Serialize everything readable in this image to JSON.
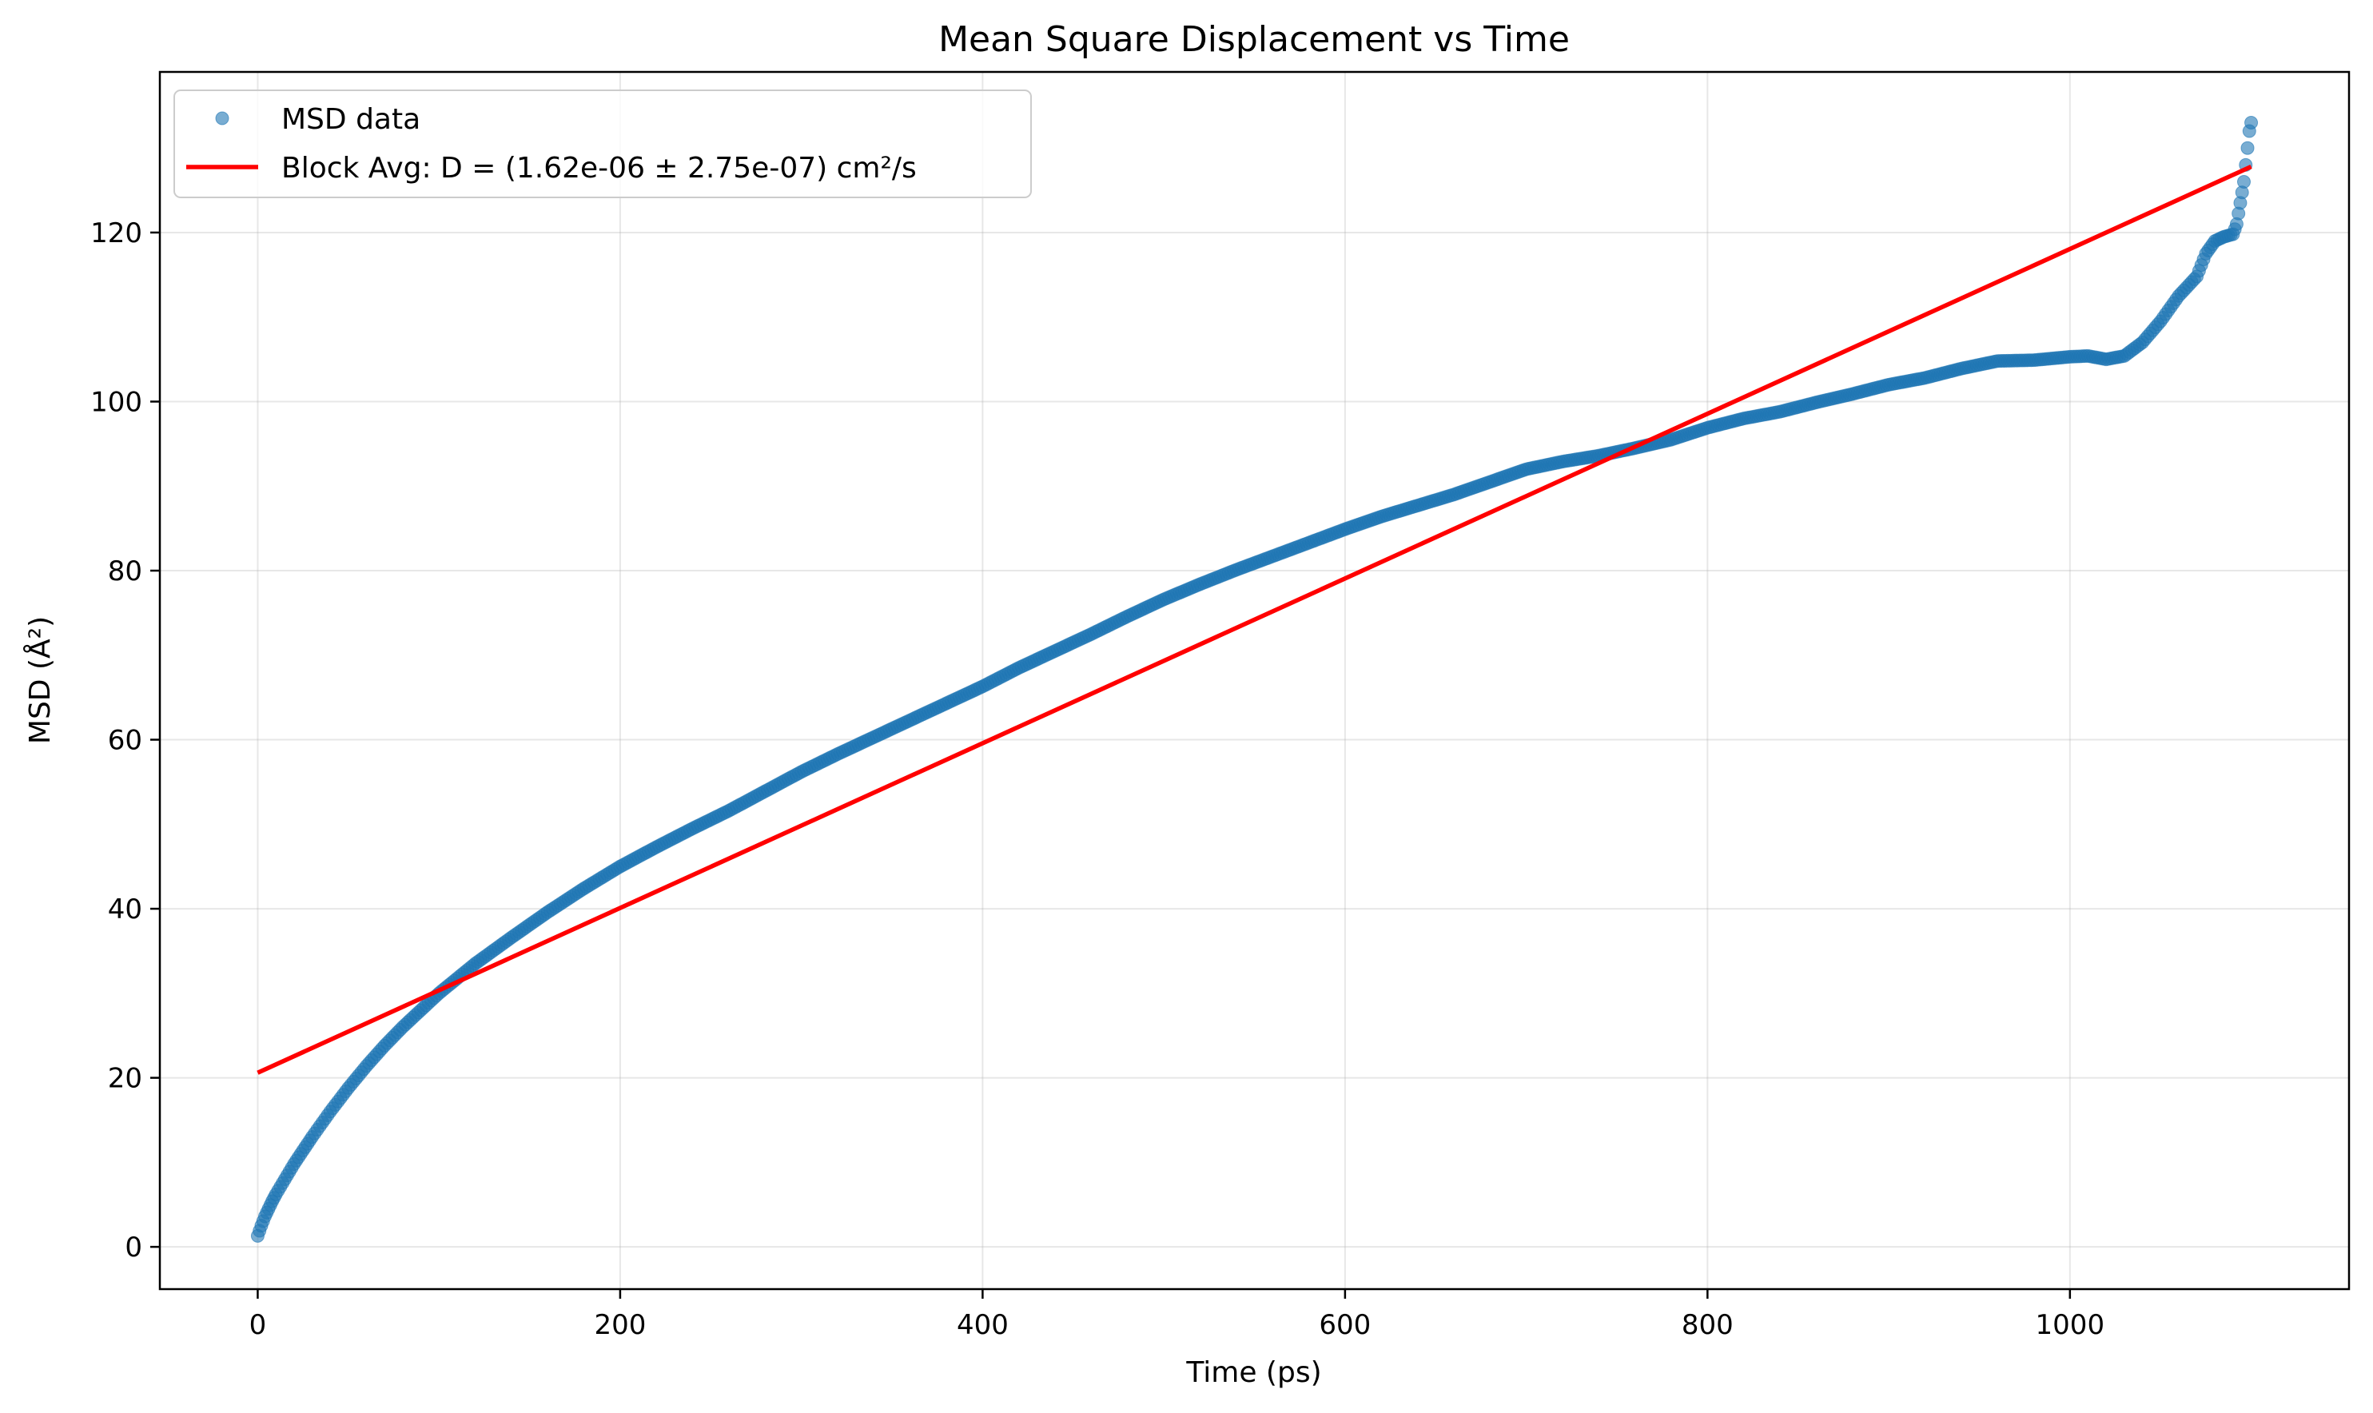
{
  "chart_data": {
    "type": "scatter",
    "title": "Mean Square Displacement vs Time",
    "xlabel": "Time (ps)",
    "ylabel": "MSD (Å²)",
    "xlim": [
      -54,
      1154
    ],
    "ylim": [
      -5,
      139
    ],
    "x_ticks": [
      0,
      200,
      400,
      600,
      800,
      1000
    ],
    "y_ticks": [
      0,
      20,
      40,
      60,
      80,
      100,
      120
    ],
    "grid": true,
    "legend_position": "top-left",
    "series": [
      {
        "name": "MSD data",
        "kind": "scatter",
        "color": "#1f77b4",
        "x": [
          0,
          2,
          4,
          6,
          8,
          10,
          15,
          20,
          25,
          30,
          40,
          50,
          60,
          70,
          80,
          90,
          100,
          120,
          140,
          160,
          180,
          200,
          220,
          240,
          260,
          280,
          300,
          320,
          340,
          360,
          380,
          400,
          420,
          440,
          460,
          480,
          500,
          520,
          540,
          560,
          580,
          600,
          620,
          640,
          660,
          680,
          700,
          720,
          740,
          760,
          780,
          800,
          820,
          840,
          860,
          880,
          900,
          920,
          940,
          960,
          980,
          1000,
          1010,
          1020,
          1030,
          1040,
          1050,
          1060,
          1070,
          1075,
          1080,
          1085,
          1090,
          1092,
          1094,
          1096,
          1097,
          1098,
          1099,
          1100
        ],
        "y": [
          1.3,
          2.5,
          3.6,
          4.5,
          5.4,
          6.2,
          8.0,
          9.8,
          11.4,
          13.0,
          16.0,
          18.8,
          21.4,
          23.8,
          26.0,
          28.0,
          30.0,
          33.5,
          36.6,
          39.6,
          42.4,
          45.0,
          47.3,
          49.5,
          51.6,
          53.9,
          56.2,
          58.3,
          60.3,
          62.3,
          64.3,
          66.3,
          68.5,
          70.5,
          72.5,
          74.6,
          76.6,
          78.4,
          80.1,
          81.7,
          83.3,
          84.9,
          86.4,
          87.7,
          89.0,
          90.5,
          92.0,
          92.9,
          93.6,
          94.5,
          95.5,
          96.9,
          98.0,
          98.8,
          99.9,
          100.9,
          102.0,
          102.8,
          103.9,
          104.8,
          104.9,
          105.3,
          105.4,
          105.0,
          105.4,
          107.0,
          109.5,
          112.5,
          114.8,
          117.5,
          119.0,
          119.5,
          119.8,
          121.0,
          123.5,
          126.0,
          128.0,
          130.0,
          132.0,
          133.0
        ]
      },
      {
        "name": "Block Avg: D = (1.62e-06 ± 2.75e-07) cm²/s",
        "kind": "line",
        "color": "#ff0000",
        "x": [
          0,
          1100
        ],
        "y": [
          20.6,
          127.8
        ]
      }
    ]
  }
}
